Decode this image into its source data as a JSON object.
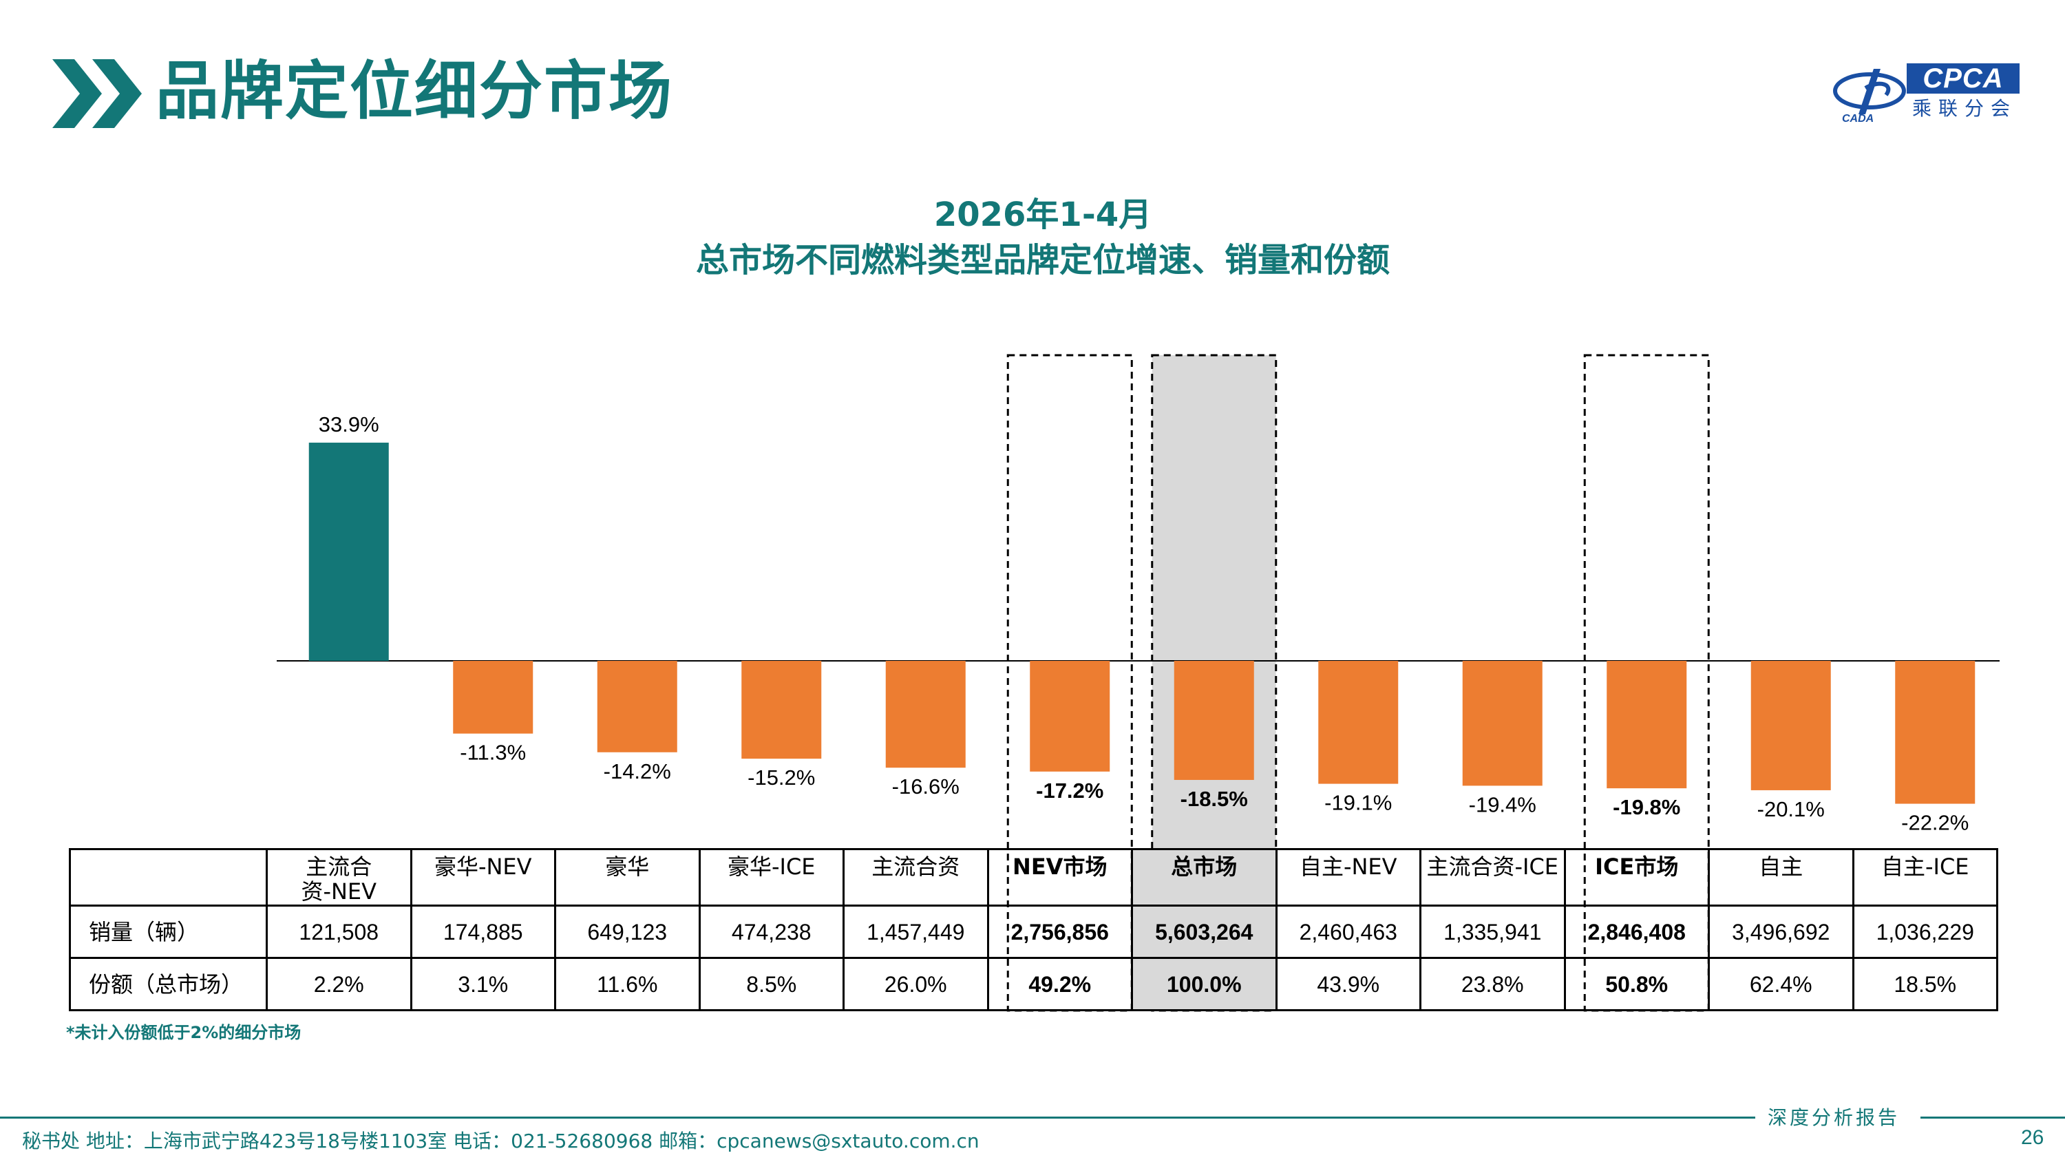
{
  "header": {
    "title": "品牌定位细分市场",
    "logo_text": "CPCA",
    "logo_cn": "乘联分会",
    "logo_small": "CADA"
  },
  "colors": {
    "teal": "#137777",
    "positive_bar": "#137777",
    "negative_bar": "#ED7D31",
    "total_highlight": "#D9D9D9",
    "logo_blue": "#1A4FA3"
  },
  "chart_data": {
    "type": "bar",
    "title": "2026年1-4月",
    "subtitle": "总市场不同燃料类型品牌定位增速、销量和份额",
    "categories": [
      "主流合资-NEV",
      "豪华-NEV",
      "豪华",
      "豪华-ICE",
      "主流合资",
      "NEV市场",
      "总市场",
      "自主-NEV",
      "主流合资-ICE",
      "ICE市场",
      "自主",
      "自主-ICE"
    ],
    "series": [
      {
        "values": [
          33.9,
          -11.3,
          -14.2,
          -15.2,
          -16.6,
          -17.2,
          -18.5,
          -19.1,
          -19.4,
          -19.8,
          -20.1,
          -22.2
        ]
      }
    ],
    "data_labels": [
      "33.9%",
      "-11.3%",
      "-14.2%",
      "-15.2%",
      "-16.6%",
      "-17.2%",
      "-18.5%",
      "-19.1%",
      "-19.4%",
      "-19.8%",
      "-20.1%",
      "-22.2%"
    ],
    "highlighted": [
      "NEV市场",
      "总市场",
      "ICE市场"
    ],
    "shaded": "总市场",
    "xlabel": "",
    "ylabel": "",
    "grid": false
  },
  "table": {
    "headers": [
      "主流合\n资-NEV",
      "豪华-NEV",
      "豪华",
      "豪华-ICE",
      "主流合资",
      "NEV市场",
      "总市场",
      "自主-NEV",
      "主流合资-ICE",
      "ICE市场",
      "自主",
      "自主-ICE"
    ],
    "rows": [
      {
        "label": "销量（辆）",
        "cells": [
          "121,508",
          "174,885",
          "649,123",
          "474,238",
          "1,457,449",
          "2,756,856",
          "5,603,264",
          "2,460,463",
          "1,335,941",
          "2,846,408",
          "3,496,692",
          "1,036,229"
        ]
      },
      {
        "label": "份额（总市场）",
        "cells": [
          "2.2%",
          "3.1%",
          "11.6%",
          "8.5%",
          "26.0%",
          "49.2%",
          "100.0%",
          "43.9%",
          "23.8%",
          "50.8%",
          "62.4%",
          "18.5%"
        ]
      }
    ]
  },
  "footnote": "*未计入份额低于2%的细分市场",
  "footer": {
    "tag": "深度分析报告",
    "address": "秘书处   地址：上海市武宁路423号18号楼1103室   电话：021-52680968   邮箱：cpcanews@sxtauto.com.cn",
    "page_number": "26"
  }
}
